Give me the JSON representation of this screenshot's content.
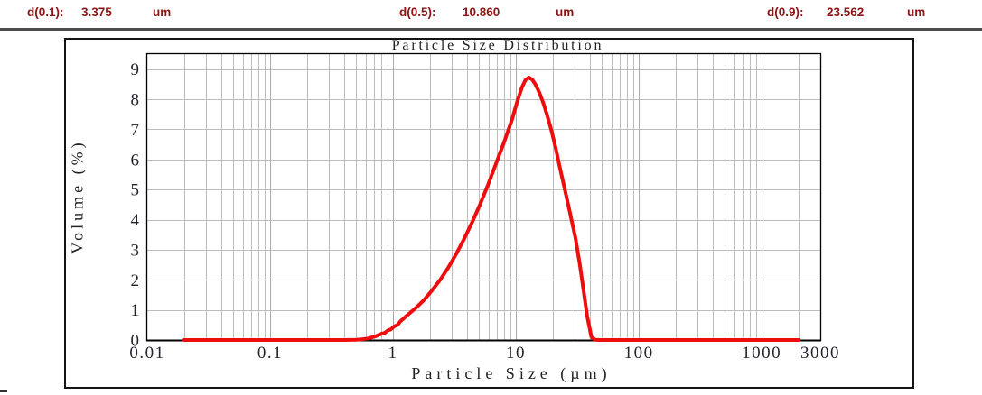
{
  "header": {
    "stats": [
      {
        "label": "d(0.1):",
        "value": "3.375",
        "unit": "um"
      },
      {
        "label": "d(0.5):",
        "value": "10.860",
        "unit": "um"
      },
      {
        "label": "d(0.9):",
        "value": "23.562",
        "unit": "um"
      }
    ]
  },
  "chart_data": {
    "type": "line",
    "title": "Particle Size Distribution",
    "xlabel": "Particle Size (µm)",
    "ylabel": "Volume (%)",
    "x_scale": "log",
    "xlim": [
      0.01,
      3000
    ],
    "ylim": [
      0,
      9.5
    ],
    "yticks": [
      0,
      1,
      2,
      3,
      4,
      5,
      6,
      7,
      8,
      9
    ],
    "xticks": [
      0.01,
      0.1,
      1,
      10,
      100,
      1000,
      3000
    ],
    "xtick_labels": [
      "0.01",
      "0.1",
      "1",
      "10",
      "100",
      "1000",
      "3000"
    ],
    "grid": true,
    "legend": false,
    "series": [
      {
        "name": "volume",
        "color": "#ee0d0d",
        "points": [
          [
            0.02,
            0
          ],
          [
            0.05,
            0
          ],
          [
            0.1,
            0
          ],
          [
            0.2,
            0
          ],
          [
            0.3,
            0
          ],
          [
            0.4,
            0
          ],
          [
            0.5,
            0.01
          ],
          [
            0.55,
            0.02
          ],
          [
            0.63,
            0.05
          ],
          [
            0.73,
            0.13
          ],
          [
            0.81,
            0.21
          ],
          [
            0.86,
            0.24
          ],
          [
            0.91,
            0.32
          ],
          [
            0.96,
            0.35
          ],
          [
            1.02,
            0.45
          ],
          [
            1.09,
            0.5
          ],
          [
            1.15,
            0.62
          ],
          [
            1.33,
            0.85
          ],
          [
            1.55,
            1.08
          ],
          [
            1.79,
            1.33
          ],
          [
            2.08,
            1.65
          ],
          [
            2.42,
            2.0
          ],
          [
            2.81,
            2.4
          ],
          [
            3.26,
            2.85
          ],
          [
            3.78,
            3.35
          ],
          [
            4.39,
            3.9
          ],
          [
            5.1,
            4.5
          ],
          [
            5.92,
            5.15
          ],
          [
            6.87,
            5.85
          ],
          [
            7.97,
            6.55
          ],
          [
            9.26,
            7.3
          ],
          [
            10.3,
            7.95
          ],
          [
            11.2,
            8.4
          ],
          [
            12.0,
            8.65
          ],
          [
            12.8,
            8.72
          ],
          [
            13.6,
            8.65
          ],
          [
            14.48,
            8.48
          ],
          [
            15.6,
            8.2
          ],
          [
            16.8,
            7.85
          ],
          [
            18.0,
            7.45
          ],
          [
            19.5,
            6.95
          ],
          [
            21.0,
            6.4
          ],
          [
            22.6,
            5.8
          ],
          [
            26.3,
            4.6
          ],
          [
            30.5,
            3.4
          ],
          [
            33.0,
            2.55
          ],
          [
            35.4,
            1.7
          ],
          [
            38.0,
            0.8
          ],
          [
            41.1,
            0.1
          ],
          [
            44.0,
            0.01
          ],
          [
            47.7,
            0
          ],
          [
            60,
            0
          ],
          [
            100,
            0
          ],
          [
            200,
            0
          ],
          [
            500,
            0
          ],
          [
            1000,
            0
          ],
          [
            1500,
            0
          ],
          [
            2000,
            0
          ]
        ]
      }
    ],
    "colors": {
      "curve": "#ee0d0d",
      "grid_minor": "#bdbdbd",
      "grid_major": "#a8a8a8",
      "axis": "#000000",
      "tick_text": "#23232e",
      "header_text": "#8b1414"
    }
  }
}
